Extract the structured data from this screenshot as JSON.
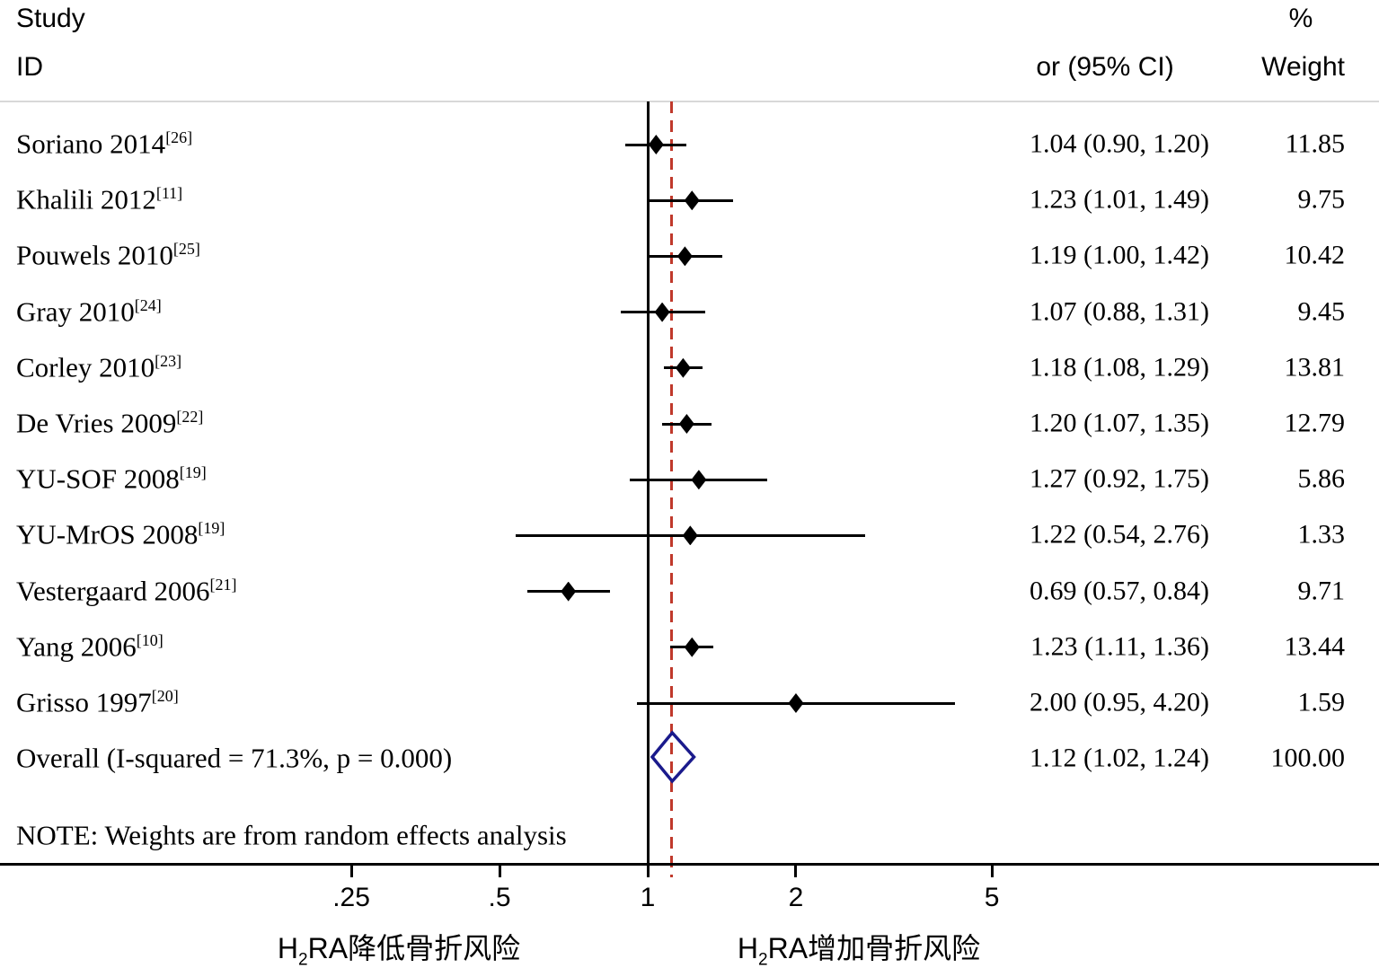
{
  "header": {
    "study_line1": "Study",
    "study_line2": "ID",
    "or_ci": "or (95% CI)",
    "weight_line1": "%",
    "weight_line2": "Weight"
  },
  "note": "NOTE: Weights are from random effects analysis",
  "colors": {
    "text": "#000000",
    "separator": "#d8d8d8",
    "ref_line": "#000000",
    "overall_dashed_line": "#c0392b",
    "overall_diamond": "#1a1a8c",
    "ci_and_marker": "#000000"
  },
  "chart_data": {
    "type": "scatter",
    "subtype": "forest-plot",
    "title": "",
    "x_scale": "log",
    "x_ticks": [
      0.25,
      0.5,
      1,
      2,
      5
    ],
    "x_tick_labels": [
      ".25",
      ".5",
      "1",
      "2",
      "5"
    ],
    "null_ref_line_x": 1,
    "overall_estimate_line_x": 1.12,
    "legend_position": "none",
    "grid": "off",
    "columns": {
      "study_line1": "Study",
      "study_line2": "ID",
      "or_ci": "or (95% CI)",
      "weight_line1": "%",
      "weight_line2": "Weight"
    },
    "studies": [
      {
        "name": "Soriano 2014",
        "ref": "[26]",
        "or": 1.04,
        "ci_low": 0.9,
        "ci_high": 1.2,
        "or_ci_label": "1.04 (0.90, 1.20)",
        "weight_label": "11.85",
        "weight_pct": 11.85
      },
      {
        "name": "Khalili 2012",
        "ref": "[11]",
        "or": 1.23,
        "ci_low": 1.01,
        "ci_high": 1.49,
        "or_ci_label": "1.23 (1.01, 1.49)",
        "weight_label": "9.75",
        "weight_pct": 9.75
      },
      {
        "name": "Pouwels 2010",
        "ref": "[25]",
        "or": 1.19,
        "ci_low": 1.0,
        "ci_high": 1.42,
        "or_ci_label": "1.19 (1.00, 1.42)",
        "weight_label": "10.42",
        "weight_pct": 10.42
      },
      {
        "name": "Gray 2010",
        "ref": "[24]",
        "or": 1.07,
        "ci_low": 0.88,
        "ci_high": 1.31,
        "or_ci_label": "1.07 (0.88, 1.31)",
        "weight_label": "9.45",
        "weight_pct": 9.45
      },
      {
        "name": "Corley 2010",
        "ref": "[23]",
        "or": 1.18,
        "ci_low": 1.08,
        "ci_high": 1.29,
        "or_ci_label": "1.18 (1.08, 1.29)",
        "weight_label": "13.81",
        "weight_pct": 13.81
      },
      {
        "name": "De Vries 2009",
        "ref": "[22]",
        "or": 1.2,
        "ci_low": 1.07,
        "ci_high": 1.35,
        "or_ci_label": "1.20 (1.07, 1.35)",
        "weight_label": "12.79",
        "weight_pct": 12.79
      },
      {
        "name": "YU-SOF 2008",
        "ref": "[19]",
        "or": 1.27,
        "ci_low": 0.92,
        "ci_high": 1.75,
        "or_ci_label": "1.27 (0.92, 1.75)",
        "weight_label": "5.86",
        "weight_pct": 5.86
      },
      {
        "name": "YU-MrOS 2008",
        "ref": "[19]",
        "or": 1.22,
        "ci_low": 0.54,
        "ci_high": 2.76,
        "or_ci_label": "1.22 (0.54, 2.76)",
        "weight_label": "1.33",
        "weight_pct": 1.33
      },
      {
        "name": "Vestergaard 2006",
        "ref": "[21]",
        "or": 0.69,
        "ci_low": 0.57,
        "ci_high": 0.84,
        "or_ci_label": "0.69 (0.57, 0.84)",
        "weight_label": "9.71",
        "weight_pct": 9.71
      },
      {
        "name": "Yang 2006",
        "ref": "[10]",
        "or": 1.23,
        "ci_low": 1.11,
        "ci_high": 1.36,
        "or_ci_label": "1.23 (1.11, 1.36)",
        "weight_label": "13.44",
        "weight_pct": 13.44
      },
      {
        "name": "Grisso 1997",
        "ref": "[20]",
        "or": 2.0,
        "ci_low": 0.95,
        "ci_high": 4.2,
        "or_ci_label": "2.00 (0.95, 4.20)",
        "weight_label": "1.59",
        "weight_pct": 1.59
      }
    ],
    "overall": {
      "name": "Overall  (I-squared = 71.3%, p = 0.000)",
      "or": 1.12,
      "ci_low": 1.02,
      "ci_high": 1.24,
      "or_ci_label": "1.12 (1.02, 1.24)",
      "weight_label": "100.00",
      "weight_pct": 100.0
    },
    "note": "NOTE: Weights are from random effects analysis",
    "x_axis_annotations": {
      "left": {
        "pre": "H",
        "sub": "2",
        "post": "RA降低骨折风险"
      },
      "right": {
        "pre": "H",
        "sub": "2",
        "post": "RA增加骨折风险"
      }
    }
  }
}
